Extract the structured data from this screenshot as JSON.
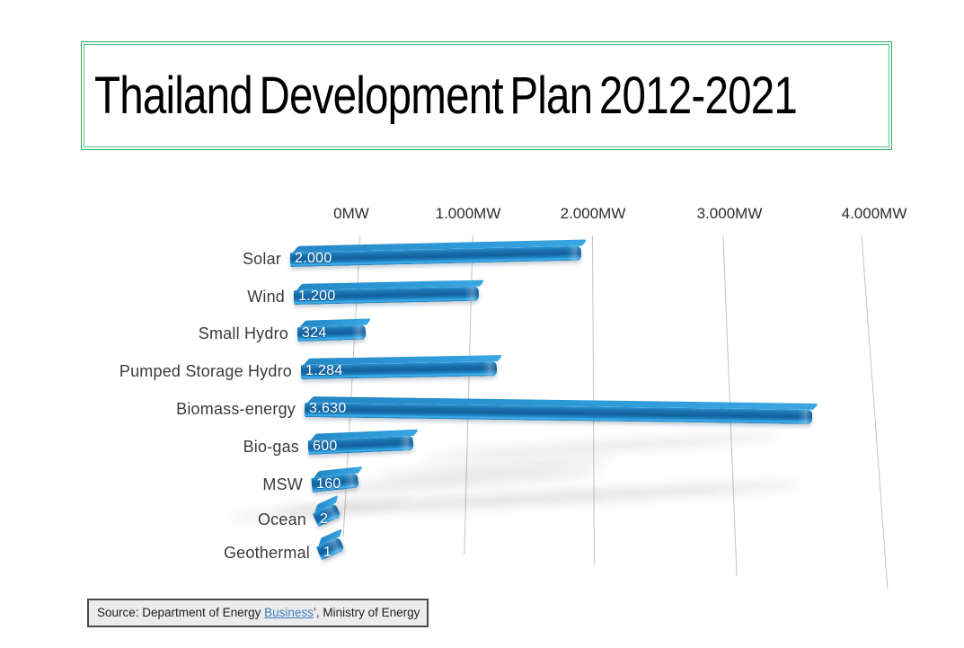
{
  "title": {
    "text": "Thailand Development Plan 2012-2021",
    "border_color": "#24b156"
  },
  "chart_data": {
    "type": "bar",
    "orientation": "horizontal",
    "style": "3d-perspective",
    "unit": "MW",
    "categories": [
      "Solar",
      "Wind",
      "Small Hydro",
      "Pumped Storage Hydro",
      "Biomass-energy",
      "Bio-gas",
      "MSW",
      "Ocean",
      "Geothermal"
    ],
    "values": [
      2000,
      1200,
      324,
      1284,
      3630,
      600,
      160,
      2,
      1
    ],
    "value_labels": [
      "2.000",
      "1.200",
      "324",
      "1.284",
      "3.630",
      "600",
      "160",
      "2",
      "1"
    ],
    "x_axis": {
      "tick_labels": [
        "0MW",
        "1.000MW",
        "2.000MW",
        "3.000MW",
        "4.000MW"
      ],
      "tick_values": [
        0,
        1000,
        2000,
        3000,
        4000
      ],
      "range": [
        0,
        4000
      ]
    },
    "grid": true,
    "legend": false,
    "bar_color": "#1673b1",
    "bar_highlight": "#41b2ee",
    "grid_color": "#c3c3c3"
  },
  "source": {
    "prefix": "Source: Department of Energy ",
    "link_text": "Business",
    "suffix": "’, Ministry of Energy"
  }
}
